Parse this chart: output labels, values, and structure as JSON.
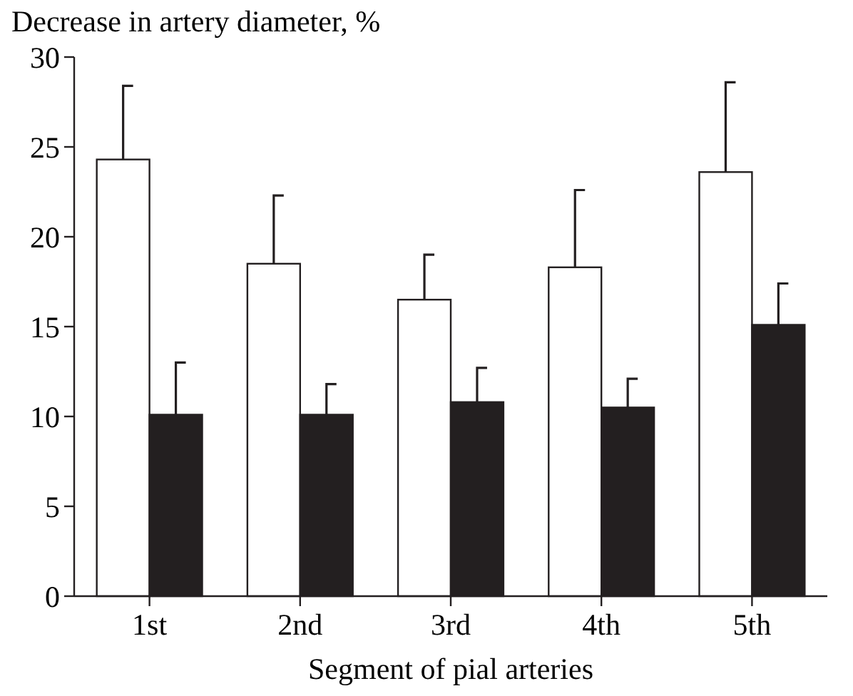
{
  "chart_data": {
    "type": "bar",
    "ylabel": "Decrease in artery diameter, %",
    "xlabel": "Segment of pial arteries",
    "categories": [
      "1st",
      "2nd",
      "3rd",
      "4th",
      "5th"
    ],
    "series": [
      {
        "color": "#ffffff",
        "values": [
          24.3,
          18.5,
          16.5,
          18.3,
          23.6
        ],
        "errors": [
          [
            24.3,
            28.4
          ],
          [
            18.5,
            22.3
          ],
          [
            16.5,
            19.0
          ],
          [
            18.3,
            22.6
          ],
          [
            23.6,
            28.6
          ]
        ]
      },
      {
        "color": "#231f20",
        "values": [
          10.1,
          10.1,
          10.8,
          10.5,
          15.1
        ],
        "errors": [
          [
            10.1,
            13.0
          ],
          [
            10.1,
            11.8
          ],
          [
            10.8,
            12.7
          ],
          [
            10.5,
            12.1
          ],
          [
            15.1,
            17.4
          ]
        ]
      }
    ],
    "ylim": [
      0,
      30
    ],
    "yticks": [
      0,
      5,
      10,
      15,
      20,
      25,
      30
    ],
    "grid": false
  }
}
